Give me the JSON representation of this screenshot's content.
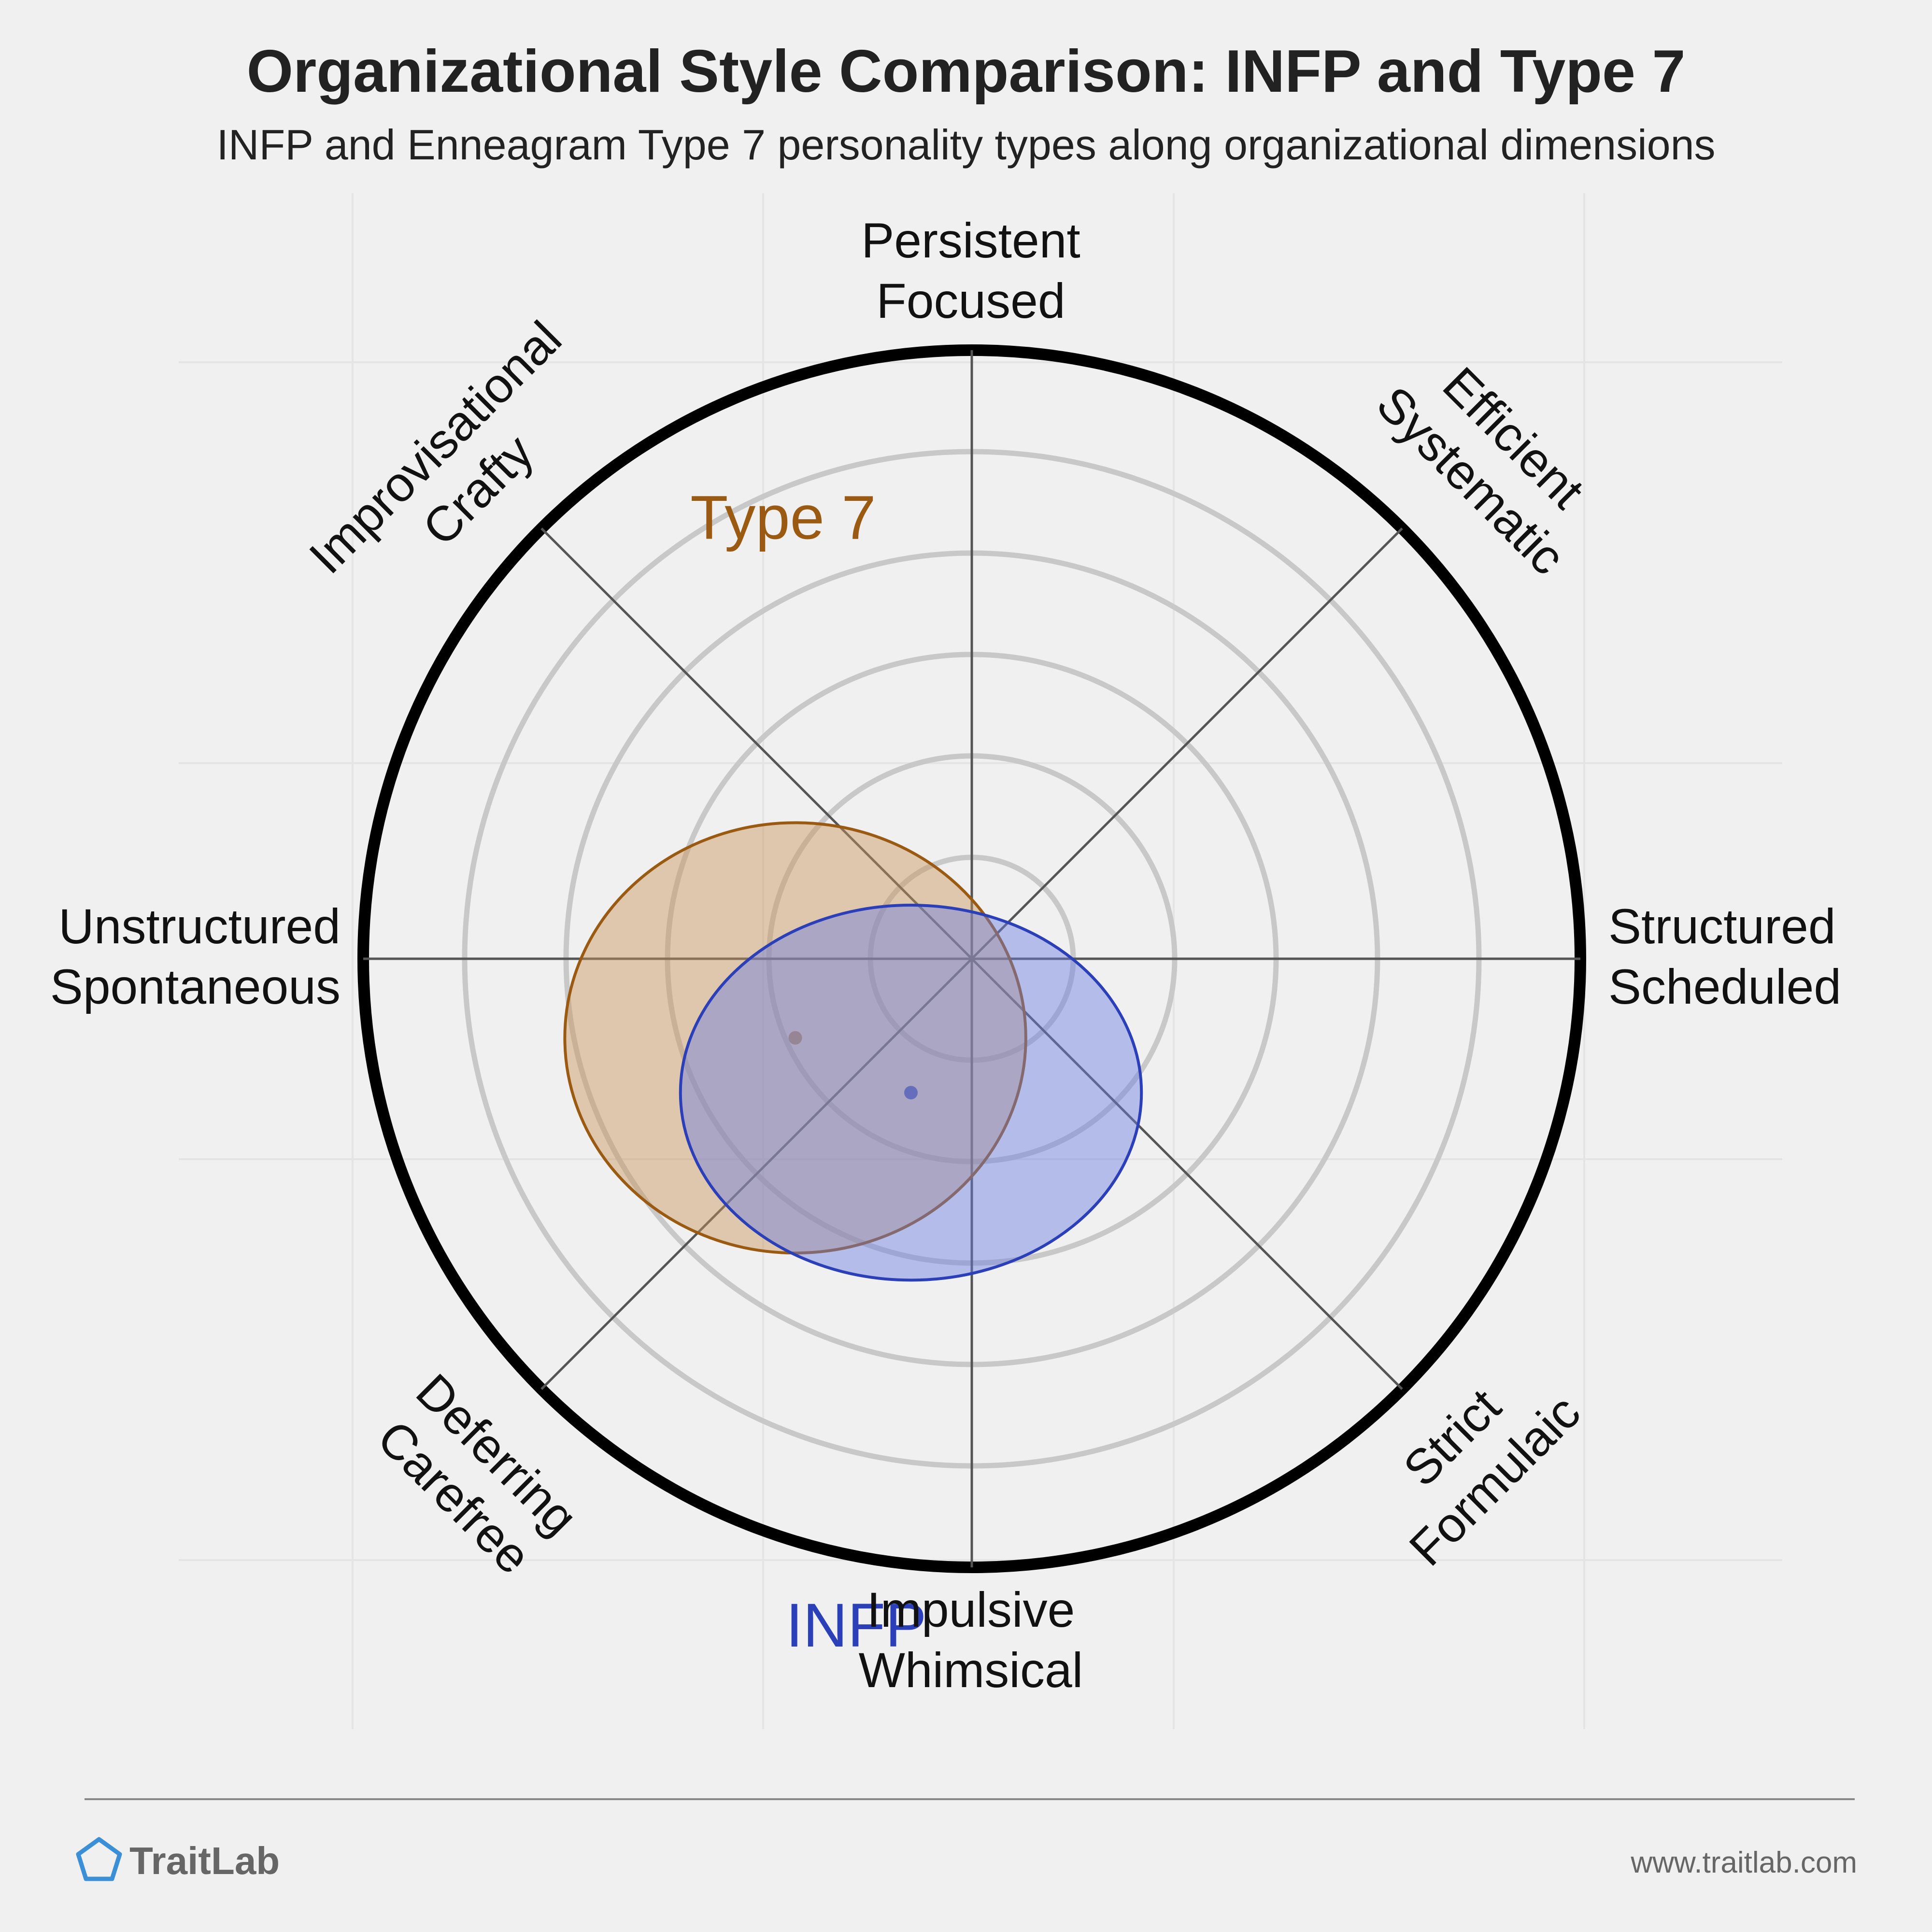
{
  "chart_data": {
    "type": "radar-ellipse",
    "title": "Organizational Style Comparison: INFP and Type 7",
    "subtitle": "INFP and Enneagram Type 7 personality types along organizational dimensions",
    "axes": [
      {
        "lines": [
          "Persistent",
          "Focused"
        ],
        "direction": "top"
      },
      {
        "lines": [
          "Efficient",
          "Systematic"
        ],
        "direction": "top-right"
      },
      {
        "lines": [
          "Structured",
          "Scheduled"
        ],
        "direction": "right"
      },
      {
        "lines": [
          "Strict",
          "Formulaic"
        ],
        "direction": "bottom-right"
      },
      {
        "lines": [
          "Impulsive",
          "Whimsical"
        ],
        "direction": "bottom"
      },
      {
        "lines": [
          "Deferring",
          "Carefree"
        ],
        "direction": "bottom-left"
      },
      {
        "lines": [
          "Unstructured",
          "Spontaneous"
        ],
        "direction": "left"
      },
      {
        "lines": [
          "Improvisational",
          "Crafty"
        ],
        "direction": "top-left"
      }
    ],
    "rings": 6,
    "scale_max": 1.0,
    "grid": true,
    "series": [
      {
        "name": "Type 7",
        "center": [
          -0.29,
          -0.13
        ],
        "radius_x": 0.75,
        "radius_y": 0.7,
        "color": "#9a5a12",
        "fill": "#c8955c"
      },
      {
        "name": "INFP",
        "center": [
          -0.1,
          -0.22
        ],
        "radius_x": 0.75,
        "radius_y": 0.61,
        "color": "#2b3fb8",
        "fill": "#6b7ee0"
      }
    ]
  },
  "footer": {
    "brand": "TraitLab",
    "url": "www.traitlab.com"
  },
  "colors": {
    "background": "#f0f0f0",
    "ring": "#c8c8c8",
    "outer_ring": "#000000",
    "spoke": "#555555",
    "brand_icon": "#3a8fd6"
  }
}
